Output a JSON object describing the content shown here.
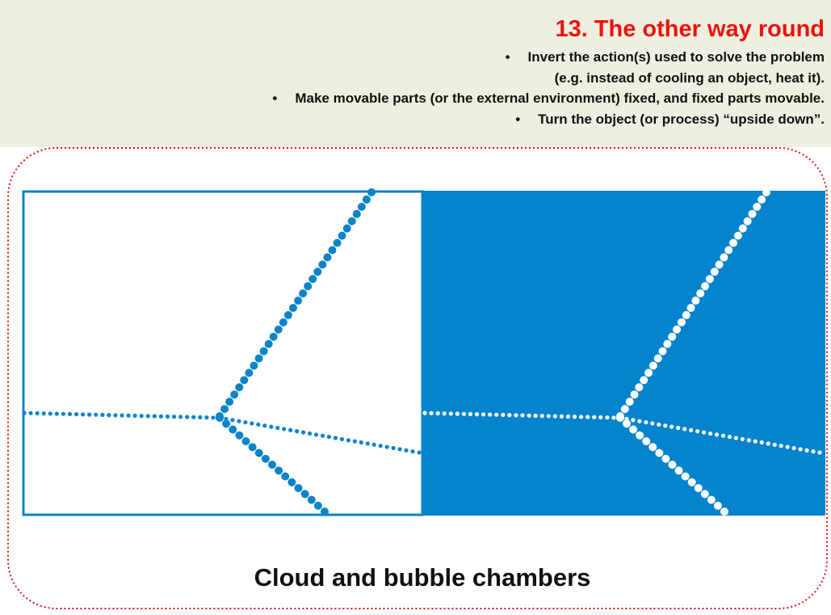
{
  "header": {
    "title": "13. The other way round",
    "bullets": [
      {
        "lines": [
          "Invert the action(s) used to solve the problem",
          "(e.g. instead of cooling an object, heat it)."
        ]
      },
      {
        "lines": [
          "Make movable parts (or the external environment) fixed, and fixed parts movable."
        ]
      },
      {
        "lines": [
          "Turn the object (or process) “upside down”."
        ]
      }
    ]
  },
  "caption": "Cloud and bubble chambers"
}
